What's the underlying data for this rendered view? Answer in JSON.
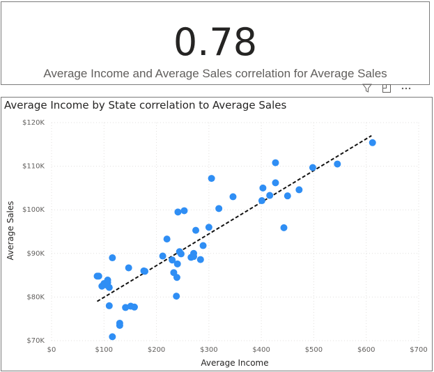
{
  "kpi_card": {
    "value": "0.78",
    "label": "Average Income and Average Sales correlation for Average Sales"
  },
  "visual_header": {
    "icons": [
      "filter-icon",
      "focus-mode-icon",
      "more-options-icon"
    ]
  },
  "colors": {
    "points": "#2f8ef4",
    "trendline": "#111111",
    "grid": "#e1dfdd"
  },
  "chart_data": {
    "type": "scatter",
    "title": "Average Income by State correlation to Average Sales",
    "xlabel": "Average Income",
    "ylabel": "Average Sales",
    "xlim": [
      0,
      700
    ],
    "ylim": [
      70000,
      120000
    ],
    "x_ticks": [
      0,
      100,
      200,
      300,
      400,
      500,
      600,
      700
    ],
    "x_tick_labels": [
      "$0",
      "$100",
      "$200",
      "$300",
      "$400",
      "$500",
      "$600",
      "$700"
    ],
    "y_ticks": [
      70000,
      80000,
      90000,
      100000,
      110000,
      120000
    ],
    "y_tick_labels": [
      "$70K",
      "$80K",
      "$90K",
      "$100K",
      "$110K",
      "$120K"
    ],
    "grid": true,
    "trendline": {
      "style": "dashed",
      "from": [
        87,
        79000
      ],
      "to": [
        610,
        117000
      ]
    },
    "points": [
      [
        87,
        84800
      ],
      [
        90,
        84800
      ],
      [
        96,
        82500
      ],
      [
        100,
        83100
      ],
      [
        103,
        82800
      ],
      [
        107,
        83900
      ],
      [
        107,
        83300
      ],
      [
        110,
        82200
      ],
      [
        110,
        78000
      ],
      [
        116,
        89000
      ],
      [
        116,
        70900
      ],
      [
        130,
        73500
      ],
      [
        130,
        74000
      ],
      [
        141,
        77600
      ],
      [
        147,
        86700
      ],
      [
        151,
        77900
      ],
      [
        158,
        77700
      ],
      [
        176,
        86000
      ],
      [
        178,
        85900
      ],
      [
        212,
        89400
      ],
      [
        220,
        93300
      ],
      [
        230,
        88500
      ],
      [
        233,
        85600
      ],
      [
        238,
        80200
      ],
      [
        239,
        84500
      ],
      [
        240,
        87600
      ],
      [
        241,
        99500
      ],
      [
        244,
        90400
      ],
      [
        247,
        89900
      ],
      [
        253,
        99800
      ],
      [
        266,
        89100
      ],
      [
        271,
        89300
      ],
      [
        271,
        90000
      ],
      [
        275,
        95300
      ],
      [
        284,
        88600
      ],
      [
        289,
        91800
      ],
      [
        300,
        96000
      ],
      [
        305,
        107200
      ],
      [
        319,
        100300
      ],
      [
        346,
        103000
      ],
      [
        401,
        102100
      ],
      [
        403,
        105000
      ],
      [
        416,
        103300
      ],
      [
        427,
        106200
      ],
      [
        427,
        110800
      ],
      [
        443,
        95900
      ],
      [
        450,
        103200
      ],
      [
        472,
        104600
      ],
      [
        498,
        109700
      ],
      [
        545,
        110500
      ],
      [
        612,
        115400
      ]
    ]
  }
}
